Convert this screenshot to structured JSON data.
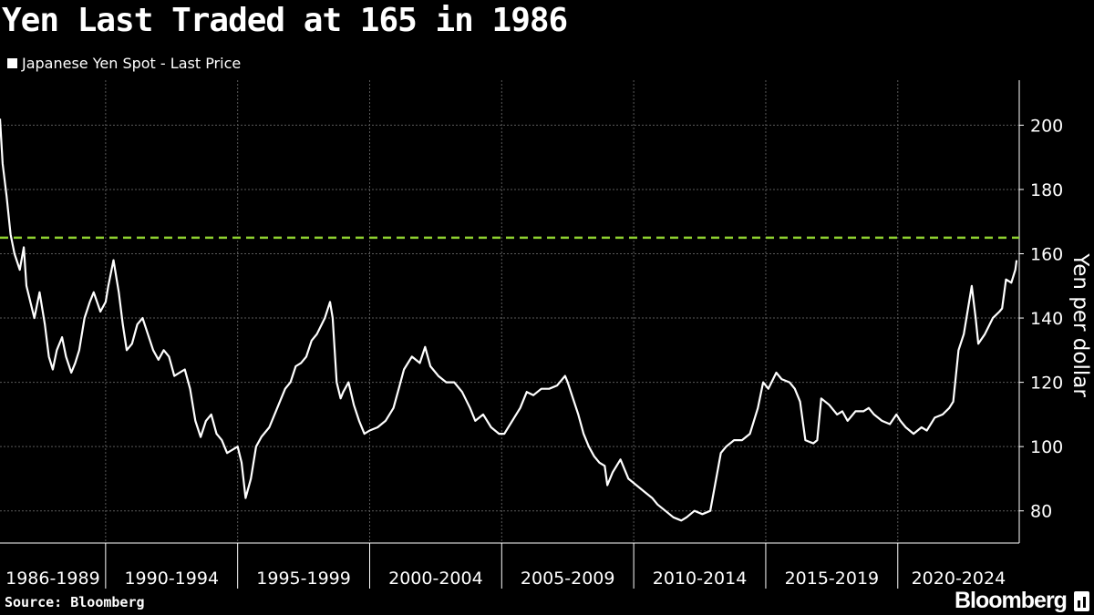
{
  "header": {
    "title": "Yen Last Traded at 165 in 1986"
  },
  "legend": {
    "label": "Japanese Yen Spot - Last Price"
  },
  "footer": {
    "source": "Source: Bloomberg",
    "brand": "Bloomberg"
  },
  "chart_data": {
    "type": "line",
    "title": "Yen Last Traded at 165 in 1986",
    "ylabel": "Yen per dollar",
    "xlabel": "",
    "ylim": [
      70,
      214
    ],
    "xlim": [
      1986.0,
      2024.6
    ],
    "yticks": [
      80,
      100,
      120,
      140,
      160,
      180,
      200
    ],
    "x_tick_labels": [
      {
        "label": "1986-1989",
        "start": 1986,
        "end": 1990
      },
      {
        "label": "1990-1994",
        "start": 1990,
        "end": 1995
      },
      {
        "label": "1995-1999",
        "start": 1995,
        "end": 2000
      },
      {
        "label": "2000-2004",
        "start": 2000,
        "end": 2005
      },
      {
        "label": "2005-2009",
        "start": 2005,
        "end": 2010
      },
      {
        "label": "2010-2014",
        "start": 2010,
        "end": 2015
      },
      {
        "label": "2015-2019",
        "start": 2015,
        "end": 2020
      },
      {
        "label": "2020-2024",
        "start": 2020,
        "end": 2024.6
      }
    ],
    "grid": true,
    "legend_position": "top-left",
    "reference_line": {
      "value": 165,
      "color": "#8fd130",
      "style": "dashed"
    },
    "series": [
      {
        "name": "Japanese Yen Spot - Last Price",
        "color": "#ffffff",
        "x": [
          1986.0,
          1986.1,
          1986.25,
          1986.4,
          1986.55,
          1986.75,
          1986.9,
          1987.0,
          1987.15,
          1987.3,
          1987.5,
          1987.7,
          1987.85,
          1988.0,
          1988.15,
          1988.35,
          1988.5,
          1988.7,
          1988.85,
          1989.0,
          1989.2,
          1989.4,
          1989.55,
          1989.8,
          1990.0,
          1990.1,
          1990.3,
          1990.5,
          1990.65,
          1990.8,
          1991.0,
          1991.2,
          1991.4,
          1991.6,
          1991.8,
          1992.0,
          1992.2,
          1992.4,
          1992.6,
          1992.8,
          1993.0,
          1993.2,
          1993.4,
          1993.6,
          1993.8,
          1994.0,
          1994.2,
          1994.4,
          1994.6,
          1994.8,
          1995.0,
          1995.15,
          1995.3,
          1995.5,
          1995.7,
          1995.9,
          1996.2,
          1996.5,
          1996.8,
          1997.0,
          1997.2,
          1997.4,
          1997.6,
          1997.8,
          1998.0,
          1998.3,
          1998.5,
          1998.6,
          1998.75,
          1998.9,
          1999.0,
          1999.2,
          1999.4,
          1999.6,
          1999.8,
          2000.0,
          2000.3,
          2000.6,
          2000.9,
          2001.1,
          2001.3,
          2001.6,
          2001.9,
          2002.1,
          2002.3,
          2002.6,
          2002.9,
          2003.2,
          2003.5,
          2003.8,
          2004.0,
          2004.3,
          2004.6,
          2004.9,
          2005.1,
          2005.4,
          2005.7,
          2005.95,
          2006.2,
          2006.5,
          2006.8,
          2007.1,
          2007.4,
          2007.5,
          2007.7,
          2007.9,
          2008.1,
          2008.3,
          2008.5,
          2008.7,
          2008.9,
          2009.0,
          2009.2,
          2009.5,
          2009.8,
          2010.1,
          2010.4,
          2010.7,
          2010.9,
          2011.2,
          2011.5,
          2011.8,
          2012.0,
          2012.3,
          2012.6,
          2012.9,
          2013.1,
          2013.3,
          2013.5,
          2013.8,
          2014.1,
          2014.4,
          2014.7,
          2014.9,
          2015.1,
          2015.4,
          2015.6,
          2015.9,
          2016.1,
          2016.3,
          2016.5,
          2016.8,
          2016.95,
          2017.1,
          2017.4,
          2017.7,
          2017.9,
          2018.1,
          2018.4,
          2018.7,
          2018.9,
          2019.1,
          2019.4,
          2019.7,
          2019.95,
          2020.1,
          2020.3,
          2020.6,
          2020.9,
          2021.1,
          2021.4,
          2021.7,
          2021.95,
          2022.1,
          2022.3,
          2022.5,
          2022.7,
          2022.8,
          2022.95,
          2023.05,
          2023.3,
          2023.6,
          2023.85,
          2023.95,
          2024.1,
          2024.3,
          2024.45,
          2024.5
        ],
        "values": [
          202,
          188,
          178,
          166,
          160,
          155,
          162,
          150,
          145,
          140,
          148,
          138,
          128,
          124,
          130,
          134,
          128,
          123,
          126,
          130,
          140,
          145,
          148,
          142,
          145,
          150,
          158,
          148,
          138,
          130,
          132,
          138,
          140,
          135,
          130,
          127,
          130,
          128,
          122,
          123,
          124,
          118,
          108,
          103,
          108,
          110,
          104,
          102,
          98,
          99,
          100,
          95,
          84,
          90,
          100,
          103,
          106,
          112,
          118,
          120,
          125,
          126,
          128,
          133,
          135,
          140,
          145,
          140,
          120,
          115,
          117,
          120,
          113,
          108,
          104,
          105,
          106,
          108,
          112,
          118,
          124,
          128,
          126,
          131,
          125,
          122,
          120,
          120,
          117,
          112,
          108,
          110,
          106,
          104,
          104,
          108,
          112,
          117,
          116,
          118,
          118,
          119,
          122,
          120,
          115,
          110,
          104,
          100,
          97,
          95,
          94,
          88,
          92,
          96,
          90,
          88,
          86,
          84,
          82,
          80,
          78,
          77,
          78,
          80,
          79,
          80,
          89,
          98,
          100,
          102,
          102,
          104,
          112,
          120,
          118,
          123,
          121,
          120,
          118,
          114,
          102,
          101,
          102,
          115,
          113,
          110,
          111,
          108,
          111,
          111,
          112,
          110,
          108,
          107,
          110,
          108,
          106,
          104,
          106,
          105,
          109,
          110,
          112,
          114,
          130,
          135,
          145,
          150,
          140,
          132,
          135,
          140,
          142,
          143,
          152,
          151,
          155,
          158
        ]
      }
    ]
  }
}
